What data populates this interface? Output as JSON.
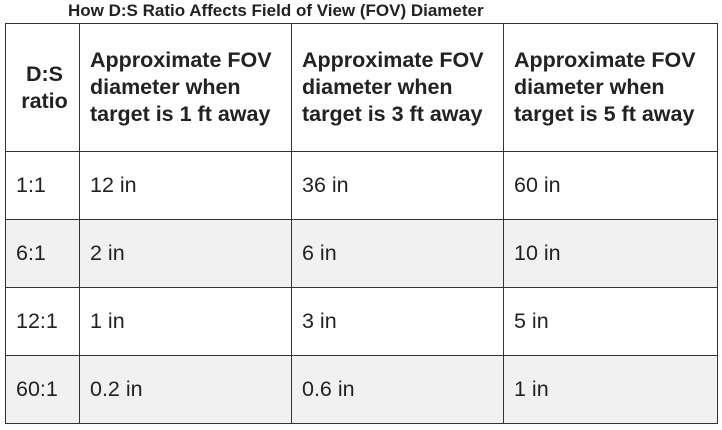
{
  "caption": "How D:S Ratio Affects Field of View (FOV) Diameter",
  "table": {
    "headers": [
      "D:S ratio",
      "Approximate FOV diameter when target is 1 ft away",
      "Approximate FOV diameter when target is 3 ft away",
      "Approximate FOV diameter when target is 5 ft away"
    ],
    "rows": [
      [
        "1:1",
        "12 in",
        "36 in",
        "60 in"
      ],
      [
        "6:1",
        "2 in",
        "6 in",
        "10 in"
      ],
      [
        "12:1",
        "1 in",
        "3 in",
        "5 in"
      ],
      [
        "60:1",
        "0.2 in",
        "0.6 in",
        "1 in"
      ]
    ]
  },
  "colors": {
    "text": "#222222",
    "border": "#333333",
    "stripe": "#f1f1f1",
    "background": "#ffffff"
  }
}
